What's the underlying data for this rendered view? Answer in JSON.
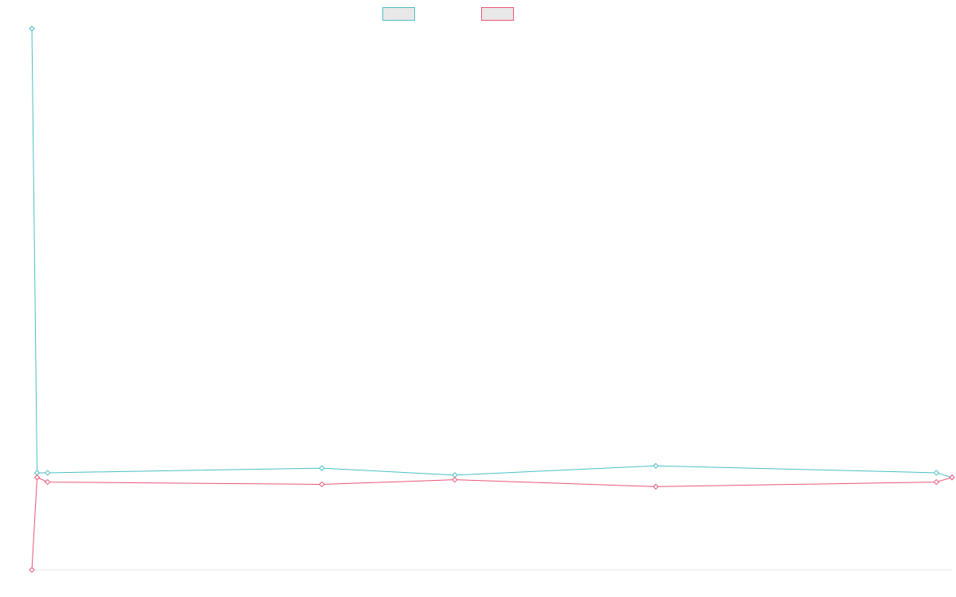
{
  "chart_data": {
    "type": "line",
    "title": "",
    "xlabel": "",
    "ylabel": "",
    "x": [
      0,
      0.5,
      1.5,
      27.7,
      40.4,
      59.6,
      86.4,
      87.9
    ],
    "series": [
      {
        "name": "",
        "color": "#4BBFC3",
        "values": [
          0.97,
          0.01,
          0.01,
          0.02,
          0.005,
          0.025,
          0.01,
          0.0
        ]
      },
      {
        "name": "",
        "color": "#E8567A",
        "values": [
          -0.2,
          0.0,
          -0.01,
          -0.015,
          -0.005,
          -0.02,
          -0.01,
          0.0
        ]
      }
    ],
    "ylim": [
      -0.2,
      0.97
    ],
    "xlim": [
      0,
      87.9
    ],
    "grid": false,
    "legend_position": "top"
  }
}
